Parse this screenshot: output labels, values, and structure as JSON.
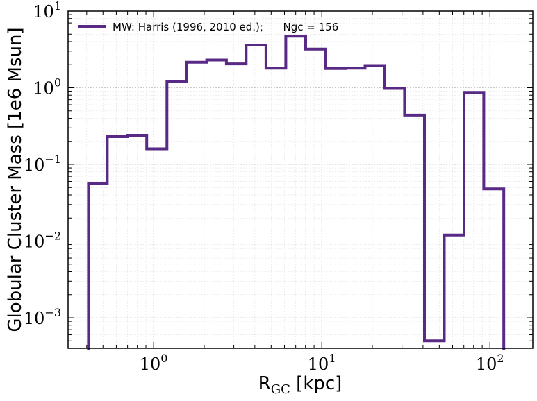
{
  "chart_data": {
    "type": "step",
    "xscale": "log",
    "yscale": "log",
    "xlim": [
      0.31,
      180
    ],
    "ylim": [
      0.0004,
      10
    ],
    "grid": true,
    "legend_position": "top-left",
    "xlabel": {
      "main": "R",
      "sub": "GC",
      "rest": " [kpc]"
    },
    "ylabel": "Globular Cluster Mass [1e6 Msun]",
    "x_ticks": [
      {
        "value": 1,
        "base": "10",
        "exp": "0"
      },
      {
        "value": 10,
        "base": "10",
        "exp": "1"
      },
      {
        "value": 100,
        "base": "10",
        "exp": "2"
      }
    ],
    "y_ticks": [
      {
        "value": 0.001,
        "base": "10",
        "exp": "−3"
      },
      {
        "value": 0.01,
        "base": "10",
        "exp": "−2"
      },
      {
        "value": 0.1,
        "base": "10",
        "exp": "−1"
      },
      {
        "value": 1,
        "base": "10",
        "exp": "0"
      },
      {
        "value": 10,
        "base": "10",
        "exp": "1"
      }
    ],
    "series": [
      {
        "name": "MW: Harris (1996, 2010 ed.);      Ngc = 156",
        "color": "#582a86",
        "bin_edges": [
          0.41,
          0.53,
          0.7,
          0.91,
          1.2,
          1.57,
          2.07,
          2.71,
          3.55,
          4.66,
          6.11,
          8.02,
          10.5,
          13.8,
          18.1,
          23.7,
          31.1,
          40.8,
          53.5,
          70.2,
          92.0,
          121.0
        ],
        "values": [
          0.056,
          0.23,
          0.24,
          0.16,
          1.2,
          2.15,
          2.3,
          2.05,
          3.6,
          1.8,
          4.7,
          3.2,
          1.78,
          1.8,
          1.95,
          0.98,
          0.44,
          0.0005,
          0.012,
          0.87,
          0.048
        ]
      }
    ]
  }
}
